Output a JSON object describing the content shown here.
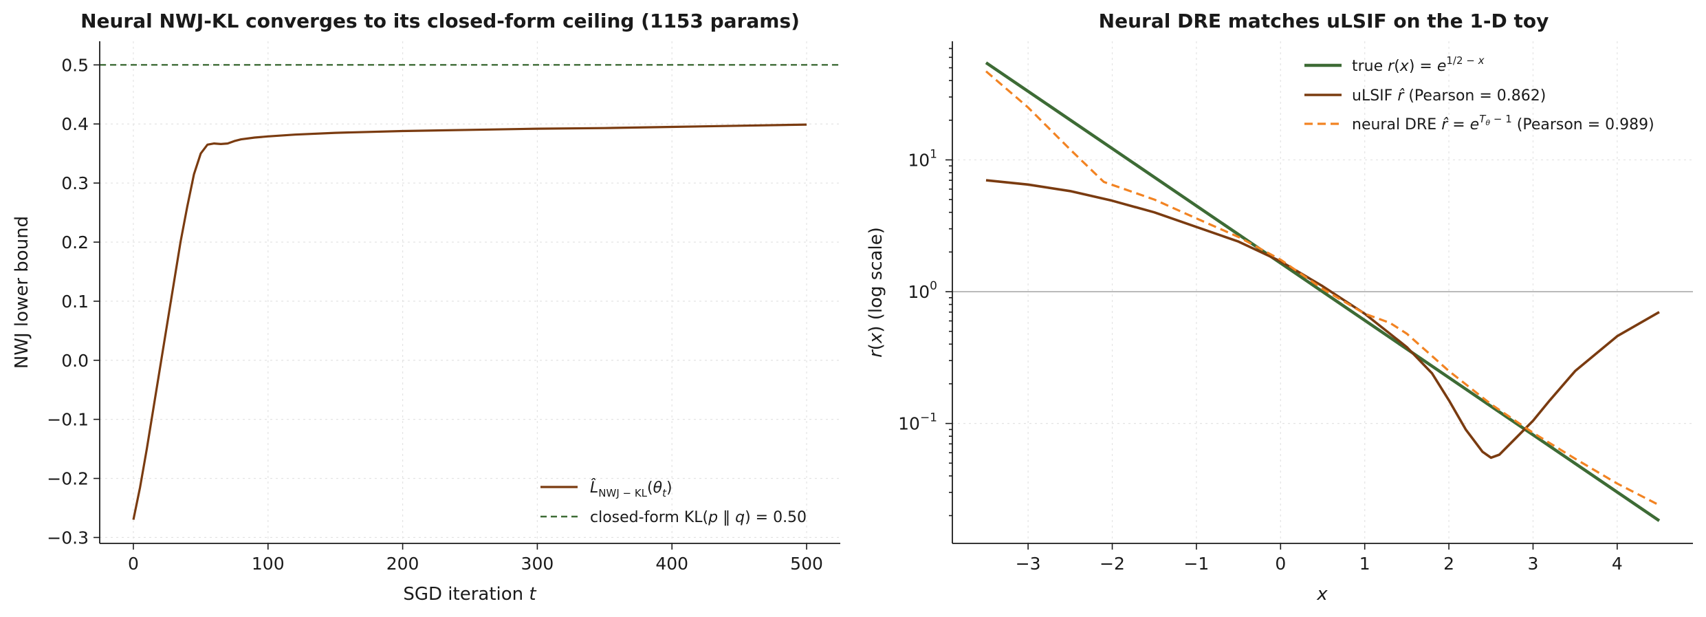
{
  "colors": {
    "green": "#3d6b35",
    "brown": "#7a3b10",
    "orange": "#f28322",
    "grey": "#b5b5b5"
  },
  "chart_data": [
    {
      "type": "line",
      "title": "Neural NWJ-KL converges to its closed-form ceiling (1153 params)",
      "xlabel": "SGD iteration t",
      "ylabel": "NWJ lower bound",
      "xlim": [
        -25,
        525
      ],
      "ylim": [
        -0.31,
        0.54
      ],
      "xticks": [
        0,
        100,
        200,
        300,
        400,
        500
      ],
      "yticks": [
        -0.3,
        -0.2,
        -0.1,
        0.0,
        0.1,
        0.2,
        0.3,
        0.4,
        0.5
      ],
      "grid": true,
      "legend_position": "lower-right",
      "series": [
        {
          "name": "L̂_NWJ−KL(θ_t)",
          "color_key": "brown",
          "style": "solid",
          "x": [
            0,
            5,
            10,
            15,
            20,
            25,
            30,
            35,
            40,
            45,
            50,
            55,
            60,
            65,
            70,
            75,
            80,
            90,
            100,
            120,
            150,
            200,
            250,
            300,
            350,
            400,
            450,
            500
          ],
          "y": [
            -0.27,
            -0.215,
            -0.15,
            -0.08,
            -0.01,
            0.06,
            0.13,
            0.2,
            0.26,
            0.315,
            0.35,
            0.365,
            0.367,
            0.366,
            0.367,
            0.371,
            0.374,
            0.377,
            0.379,
            0.382,
            0.385,
            0.388,
            0.39,
            0.392,
            0.393,
            0.395,
            0.397,
            0.399
          ]
        },
        {
          "name": "closed-form KL(p‖q) = 0.50",
          "color_key": "green",
          "style": "dashed",
          "hline": 0.5
        }
      ]
    },
    {
      "type": "line",
      "title": "Neural DRE matches uLSIF on the 1-D toy",
      "xlabel": "x",
      "ylabel": "r(x)  (log scale)",
      "yscale": "log",
      "xlim": [
        -3.9,
        4.9
      ],
      "ylim_log10": [
        -1.91,
        1.9
      ],
      "xticks": [
        -3,
        -2,
        -1,
        0,
        1,
        2,
        3,
        4
      ],
      "ytick_labels": [
        {
          "base": "10",
          "exp": "−1",
          "log10": -1
        },
        {
          "base": "10",
          "exp": "0",
          "log10": 0
        },
        {
          "base": "10",
          "exp": "1",
          "log10": 1
        }
      ],
      "reference_line": 1,
      "grid": true,
      "legend_position": "upper-right",
      "series": [
        {
          "name": "true r(x) = e^(1/2 − x)",
          "color_key": "green",
          "style": "solid",
          "x": [
            -3.5,
            4.5
          ],
          "y": [
            54.6,
            0.0183
          ]
        },
        {
          "name": "uLSIF r̂  (Pearson = 0.862)",
          "color_key": "brown",
          "style": "solid",
          "x": [
            -3.5,
            -3.0,
            -2.5,
            -2.0,
            -1.5,
            -1.0,
            -0.5,
            0.0,
            0.5,
            1.0,
            1.5,
            1.8,
            2.0,
            2.2,
            2.4,
            2.5,
            2.6,
            2.8,
            3.0,
            3.2,
            3.5,
            4.0,
            4.5
          ],
          "y": [
            7.0,
            6.5,
            5.8,
            4.9,
            4.0,
            3.1,
            2.4,
            1.7,
            1.1,
            0.68,
            0.38,
            0.24,
            0.15,
            0.09,
            0.061,
            0.055,
            0.058,
            0.078,
            0.105,
            0.15,
            0.25,
            0.46,
            0.7
          ]
        },
        {
          "name": "neural DRE r̂ = e^(Tθ − 1)  (Pearson = 0.989)",
          "color_key": "orange",
          "style": "dashed",
          "x": [
            -3.5,
            -3.0,
            -2.5,
            -2.1,
            -1.5,
            -1.0,
            -0.5,
            0.0,
            0.5,
            1.0,
            1.3,
            1.5,
            2.0,
            2.5,
            3.0,
            3.5,
            4.0,
            4.5
          ],
          "y": [
            47.0,
            25.0,
            12.0,
            6.8,
            5.0,
            3.6,
            2.6,
            1.75,
            1.05,
            0.68,
            0.58,
            0.48,
            0.25,
            0.14,
            0.085,
            0.054,
            0.035,
            0.024
          ]
        }
      ]
    }
  ]
}
